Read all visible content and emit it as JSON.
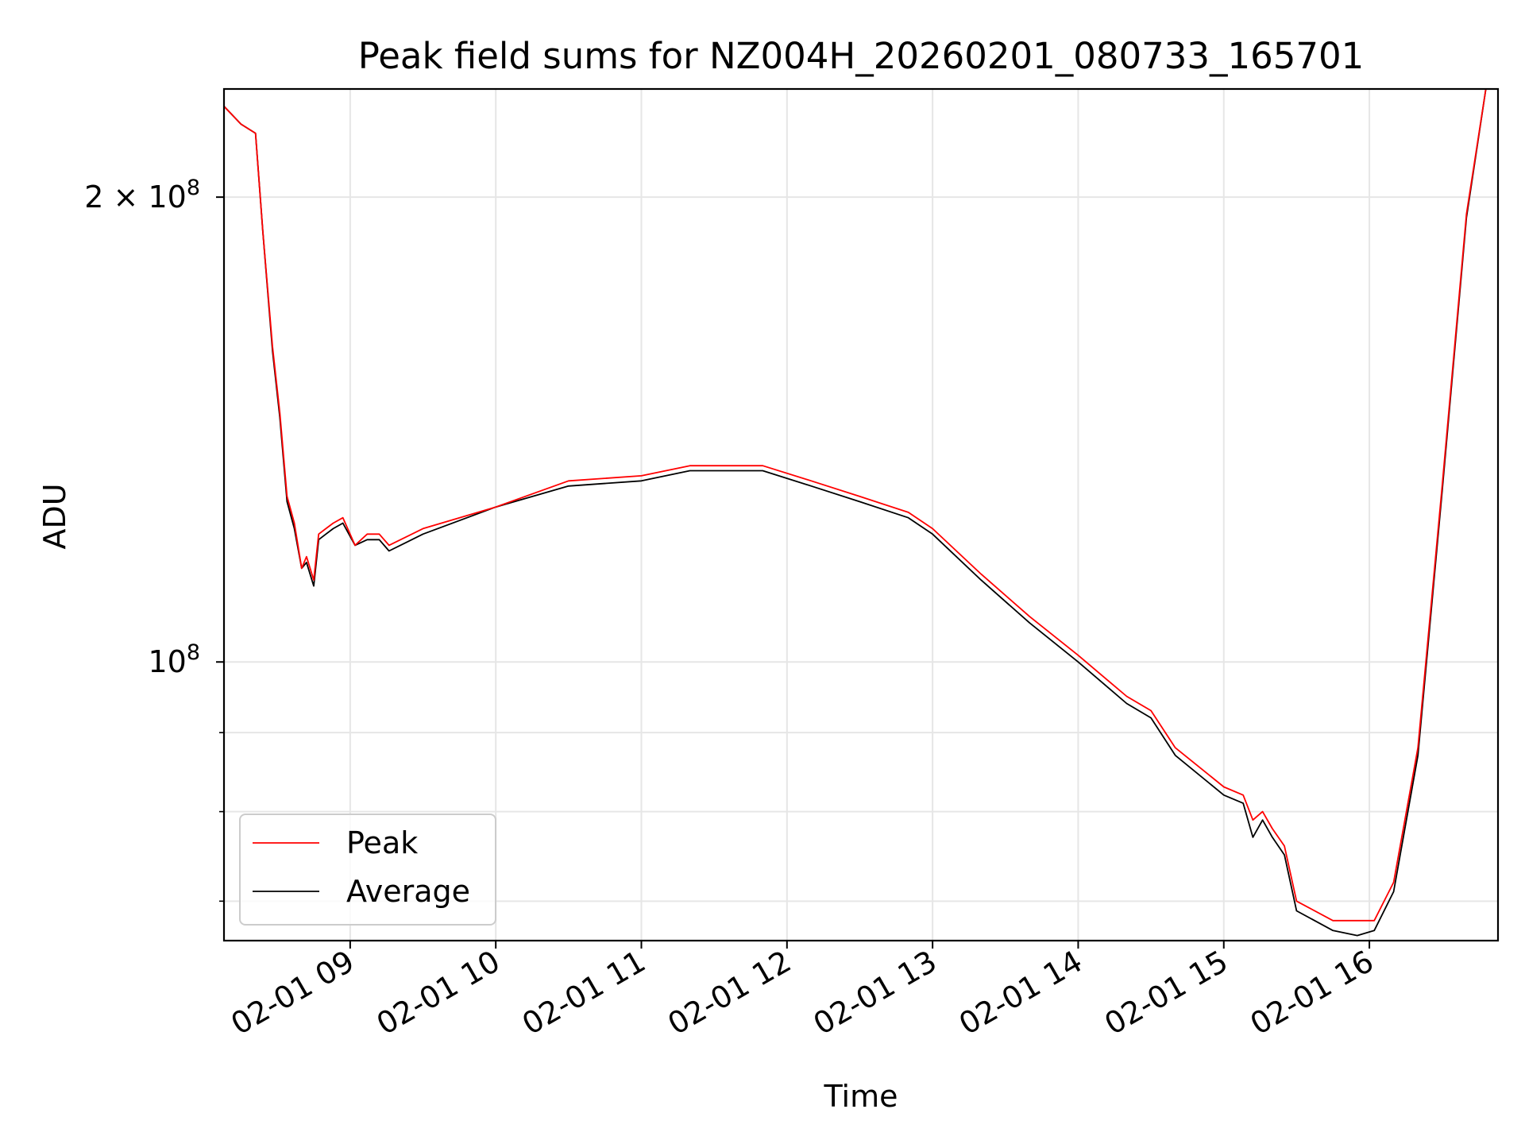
{
  "chart_data": {
    "type": "line",
    "title": "Peak field sums for NZ004H_20260201_080733_165701",
    "xlabel": "Time",
    "ylabel": "ADU",
    "x_axis": {
      "type": "time",
      "range": [
        "2026-02-01 08:08",
        "2026-02-01 16:53"
      ],
      "tick_values": [
        "2026-02-01 09:00",
        "2026-02-01 10:00",
        "2026-02-01 11:00",
        "2026-02-01 12:00",
        "2026-02-01 13:00",
        "2026-02-01 14:00",
        "2026-02-01 15:00",
        "2026-02-01 16:00"
      ],
      "tick_labels": [
        "02-01 09",
        "02-01 10",
        "02-01 11",
        "02-01 12",
        "02-01 13",
        "02-01 14",
        "02-01 15",
        "02-01 16"
      ]
    },
    "y_axis": {
      "scale": "log",
      "range": [
        66000000,
        235000000
      ],
      "major_ticks": [
        {
          "value": 100000000,
          "label_base": "10",
          "label_exp": "8"
        },
        {
          "value": 200000000,
          "label_base": "2 × 10",
          "label_exp": "8"
        }
      ],
      "minor_ticks": [
        70000000,
        80000000,
        90000000
      ]
    },
    "grid": true,
    "legend": {
      "position": "lower-left",
      "entries": [
        "Peak",
        "Average"
      ]
    },
    "colors": {
      "Peak": "#ff0000",
      "Average": "#000000"
    },
    "x": [
      "2026-02-01 08:08",
      "2026-02-01 08:15",
      "2026-02-01 08:21",
      "2026-02-01 08:24",
      "2026-02-01 08:28",
      "2026-02-01 08:31",
      "2026-02-01 08:34",
      "2026-02-01 08:37",
      "2026-02-01 08:40",
      "2026-02-01 08:42",
      "2026-02-01 08:45",
      "2026-02-01 08:47",
      "2026-02-01 08:50",
      "2026-02-01 08:53",
      "2026-02-01 08:57",
      "2026-02-01 09:02",
      "2026-02-01 09:07",
      "2026-02-01 09:12",
      "2026-02-01 09:16",
      "2026-02-01 09:30",
      "2026-02-01 10:00",
      "2026-02-01 10:30",
      "2026-02-01 11:00",
      "2026-02-01 11:20",
      "2026-02-01 11:50",
      "2026-02-01 12:10",
      "2026-02-01 12:30",
      "2026-02-01 12:50",
      "2026-02-01 13:00",
      "2026-02-01 13:20",
      "2026-02-01 13:40",
      "2026-02-01 14:00",
      "2026-02-01 14:20",
      "2026-02-01 14:30",
      "2026-02-01 14:40",
      "2026-02-01 15:00",
      "2026-02-01 15:08",
      "2026-02-01 15:12",
      "2026-02-01 15:16",
      "2026-02-01 15:20",
      "2026-02-01 15:25",
      "2026-02-01 15:30",
      "2026-02-01 15:45",
      "2026-02-01 15:55",
      "2026-02-01 16:02",
      "2026-02-01 16:10",
      "2026-02-01 16:20",
      "2026-02-01 16:30",
      "2026-02-01 16:40",
      "2026-02-01 16:48"
    ],
    "series": [
      {
        "name": "Peak",
        "values": [
          229000000,
          223000000,
          220000000,
          190000000,
          160000000,
          145000000,
          128000000,
          123000000,
          115000000,
          117000000,
          113000000,
          121000000,
          122000000,
          123000000,
          124000000,
          119000000,
          121000000,
          121000000,
          119000000,
          122000000,
          126000000,
          131000000,
          132000000,
          134000000,
          134000000,
          131000000,
          128000000,
          125000000,
          122000000,
          114000000,
          107000000,
          101000000,
          95000000,
          93000000,
          88000000,
          83000000,
          82000000,
          79000000,
          80000000,
          78000000,
          76000000,
          70000000,
          68000000,
          68000000,
          68000000,
          72000000,
          88000000,
          130000000,
          195000000,
          235000000
        ]
      },
      {
        "name": "Average",
        "values": [
          229000000,
          223000000,
          220000000,
          190000000,
          159000000,
          144000000,
          127000000,
          122000000,
          115000000,
          116000000,
          112000000,
          120000000,
          121000000,
          122000000,
          123000000,
          119000000,
          120000000,
          120000000,
          118000000,
          121000000,
          126000000,
          130000000,
          131000000,
          133000000,
          133000000,
          130000000,
          127000000,
          124000000,
          121000000,
          113000000,
          106000000,
          100000000,
          94000000,
          92000000,
          87000000,
          82000000,
          81000000,
          77000000,
          79000000,
          77000000,
          75000000,
          69000000,
          67000000,
          66500000,
          67000000,
          71000000,
          87000000,
          129000000,
          194000000,
          235000000
        ]
      }
    ]
  }
}
